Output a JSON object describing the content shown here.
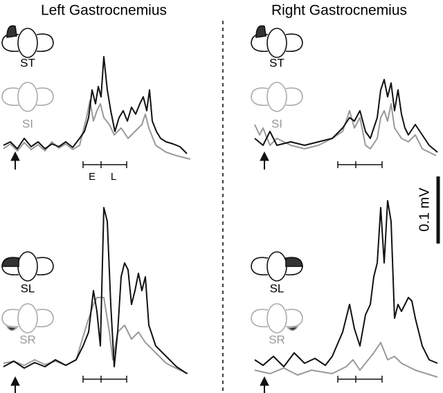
{
  "columns": [
    {
      "title": "Left Gastrocnemius",
      "panels": [
        {
          "labels": [
            "ST",
            "SI"
          ]
        },
        {
          "labels": [
            "SL",
            "SR"
          ]
        }
      ],
      "epoch_labels": [
        "E",
        "L"
      ]
    },
    {
      "title": "Right Gastrocnemius",
      "panels": [
        {
          "labels": [
            "ST",
            "SI"
          ]
        },
        {
          "labels": [
            "SL",
            "SR"
          ]
        }
      ]
    }
  ],
  "scale_bar": "0.1 mV"
}
